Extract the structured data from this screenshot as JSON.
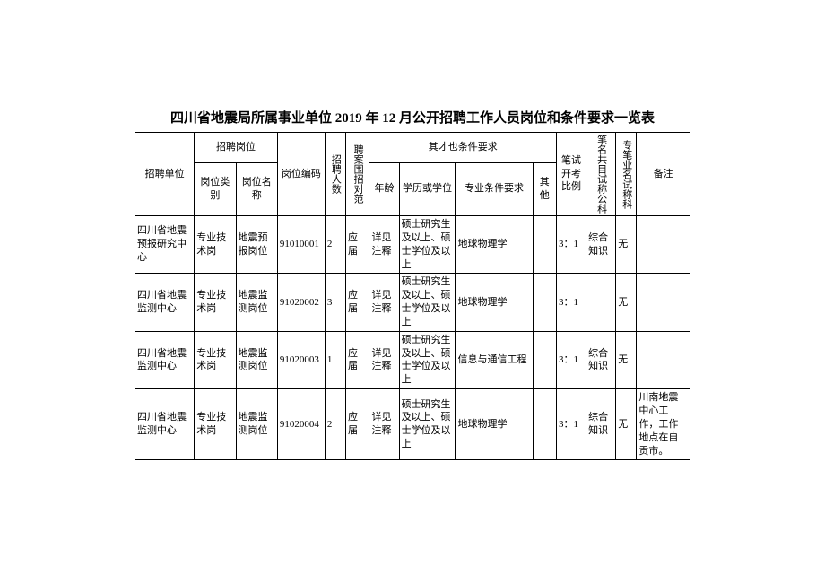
{
  "title": "四川省地震局所属事业单位 2019 年 12 月公开招聘工作人员岗位和条件要求一览表",
  "headers": {
    "unit": "招聘单位",
    "post_group": "招聘岗位",
    "post_cat": "岗位类别",
    "post_name": "岗位名称",
    "post_code": "岗位编码",
    "count": "招聘人数",
    "scope": "聘案围招对范",
    "cond_group": "其才也条件要求",
    "age": "年龄",
    "edu": "学历或学位",
    "prof": "专业条件要求",
    "other": "其他",
    "ratio": "笔试开考比例",
    "subj": "笔名共目试称公科",
    "pro": "专笔业名试称科",
    "remark": "备注"
  },
  "rows": [
    {
      "unit": "四川省地震预报研究中心",
      "cat": "专业技术岗",
      "pname": "地震预报岗位",
      "code": "91010001",
      "count": "2",
      "scope": "应届",
      "age": "详见注释",
      "edu": "硕士研究生及以上、硕士学位及以上",
      "prof": "地球物理学",
      "other": "",
      "ratio": "3：1",
      "subj": "综合知识",
      "pro": "无",
      "remark": ""
    },
    {
      "unit": "四川省地震监测中心",
      "cat": "专业技术岗",
      "pname": "地震监测岗位",
      "code": "91020002",
      "count": "3",
      "scope": "应届",
      "age": "详见注释",
      "edu": "硕士研究生及以上、硕士学位及以上",
      "prof": "地球物理学",
      "other": "",
      "ratio": "3：1",
      "subj": "",
      "pro": "无",
      "remark": ""
    },
    {
      "unit": "四川省地震监测中心",
      "cat": "专业技术岗",
      "pname": "地震监测岗位",
      "code": "91020003",
      "count": "1",
      "scope": "应届",
      "age": "详见注释",
      "edu": "硕士研究生及以上、硕士学位及以上",
      "prof": "信息与通信工程",
      "other": "",
      "ratio": "3：1",
      "subj": "综合知识",
      "pro": "无",
      "remark": ""
    },
    {
      "unit": "四川省地震监测中心",
      "cat": "专业技术岗",
      "pname": "地震监测岗位",
      "code": "91020004",
      "count": "2",
      "scope": "应届",
      "age": "详见注释",
      "edu": "硕士研究生及以上、硕士学位及以上",
      "prof": "地球物理学",
      "other": "",
      "ratio": "3：1",
      "subj": "综合知识",
      "pro": "无",
      "remark": "川南地震中心工作，工作地点在自贡市。"
    }
  ]
}
